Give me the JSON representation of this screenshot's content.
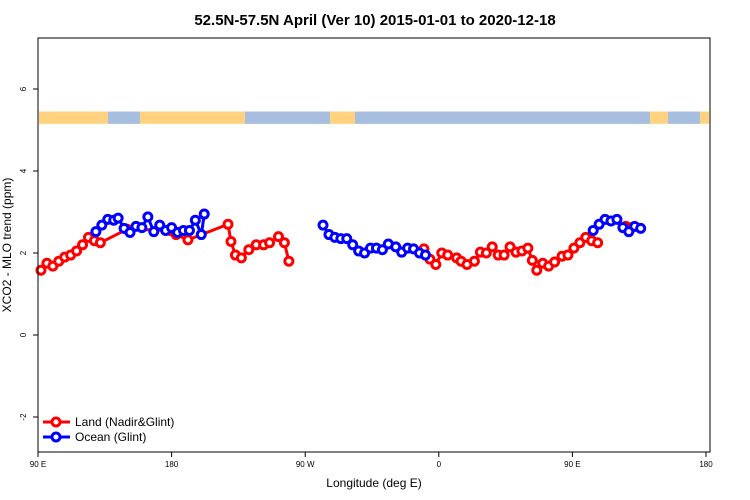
{
  "chart_data": {
    "type": "line",
    "title": "52.5N-57.5N April (Ver 10)   2015-01-01 to 2020-12-18",
    "xlabel": "Longitude (deg E)",
    "ylabel": "XCO2 - MLO trend (ppm)",
    "xlim": [
      90,
      450
    ],
    "ylim": [
      -2.4,
      7.2
    ],
    "x_ticks": [
      {
        "value": 90,
        "label": "90 E"
      },
      {
        "value": 180,
        "label": "180"
      },
      {
        "value": 270,
        "label": "90 W"
      },
      {
        "value": 360,
        "label": "0"
      },
      {
        "value": 450,
        "label": "90 E"
      },
      {
        "value": 540,
        "label": "180"
      }
    ],
    "x_ticks_note": "tick values expressed as continuous degrees east (90E..180 wrapping through 0 to 180)",
    "y_ticks": [
      {
        "value": -2,
        "label": "-2"
      },
      {
        "value": 0,
        "label": "0"
      },
      {
        "value": 2,
        "label": "2"
      },
      {
        "value": 4,
        "label": "4"
      },
      {
        "value": 6,
        "label": "6"
      }
    ],
    "land_ocean_strip": {
      "y_range": [
        5.15,
        5.45
      ],
      "land_color": "#FFD27F",
      "ocean_color": "#A8BEE0"
    },
    "legend": {
      "position": "bottom-left",
      "entries": [
        {
          "label": "Land (Nadir&Glint)",
          "color": "#FF0000"
        },
        {
          "label": "Ocean (Glint)",
          "color": "#0000FF"
        }
      ]
    },
    "series": [
      {
        "name": "Land (Nadir&Glint)",
        "color": "#FF0000",
        "segments": [
          [
            [
              92,
              1.58
            ],
            [
              96,
              1.75
            ],
            [
              100,
              1.68
            ],
            [
              104,
              1.8
            ],
            [
              108,
              1.9
            ],
            [
              112,
              1.95
            ],
            [
              116,
              2.05
            ],
            [
              120,
              2.2
            ],
            [
              124,
              2.38
            ],
            [
              128,
              2.3
            ],
            [
              132,
              2.25
            ],
            [
              150,
              2.58
            ],
            [
              179,
              2.55
            ],
            [
              183,
              2.45
            ],
            [
              191,
              2.32
            ],
            [
              218,
              2.7
            ],
            [
              220,
              2.28
            ],
            [
              223,
              1.95
            ],
            [
              227,
              1.88
            ],
            [
              232,
              2.08
            ],
            [
              237,
              2.2
            ],
            [
              242,
              2.2
            ],
            [
              246,
              2.25
            ],
            [
              252,
              2.4
            ],
            [
              256,
              2.25
            ],
            [
              259,
              1.8
            ]
          ],
          [
            [
              350,
              2.1
            ],
            [
              354,
              1.85
            ],
            [
              358,
              1.72
            ],
            [
              362,
              2.0
            ],
            [
              366,
              1.95
            ],
            [
              372,
              1.88
            ],
            [
              375,
              1.8
            ],
            [
              379,
              1.72
            ],
            [
              384,
              1.8
            ],
            [
              388,
              2.02
            ],
            [
              392,
              2.0
            ],
            [
              396,
              2.15
            ],
            [
              400,
              1.95
            ],
            [
              404,
              1.95
            ],
            [
              408,
              2.15
            ],
            [
              412,
              2.02
            ],
            [
              416,
              2.05
            ],
            [
              420,
              2.12
            ],
            [
              423,
              1.82
            ],
            [
              426,
              1.58
            ],
            [
              430,
              1.75
            ],
            [
              434,
              1.68
            ],
            [
              438,
              1.78
            ],
            [
              443,
              1.92
            ],
            [
              447,
              1.95
            ],
            [
              451,
              2.12
            ],
            [
              455,
              2.25
            ],
            [
              459,
              2.38
            ],
            [
              463,
              2.3
            ],
            [
              467,
              2.25
            ]
          ],
          [
            [
              486,
              2.65
            ],
            [
              490,
              2.62
            ]
          ]
        ]
      },
      {
        "name": "Ocean (Glint)",
        "color": "#0000FF",
        "segments": [
          [
            [
              129,
              2.52
            ],
            [
              133,
              2.68
            ],
            [
              137,
              2.82
            ],
            [
              141,
              2.8
            ],
            [
              144,
              2.85
            ],
            [
              148,
              2.6
            ],
            [
              152,
              2.5
            ],
            [
              156,
              2.65
            ],
            [
              160,
              2.62
            ],
            [
              164,
              2.88
            ],
            [
              168,
              2.52
            ],
            [
              172,
              2.68
            ],
            [
              176,
              2.55
            ],
            [
              180,
              2.62
            ],
            [
              184,
              2.5
            ],
            [
              188,
              2.55
            ],
            [
              192,
              2.55
            ],
            [
              196,
              2.8
            ],
            [
              200,
              2.45
            ],
            [
              202,
              2.95
            ]
          ],
          [
            [
              282,
              2.68
            ],
            [
              286,
              2.45
            ],
            [
              290,
              2.38
            ],
            [
              294,
              2.35
            ],
            [
              298,
              2.35
            ],
            [
              302,
              2.2
            ],
            [
              306,
              2.05
            ],
            [
              310,
              2.0
            ],
            [
              314,
              2.12
            ],
            [
              318,
              2.12
            ],
            [
              322,
              2.08
            ],
            [
              326,
              2.22
            ],
            [
              331,
              2.15
            ],
            [
              335,
              2.02
            ],
            [
              339,
              2.12
            ],
            [
              343,
              2.1
            ],
            [
              347,
              2.0
            ],
            [
              351,
              1.95
            ]
          ],
          [
            [
              464,
              2.55
            ],
            [
              468,
              2.7
            ],
            [
              472,
              2.82
            ],
            [
              476,
              2.78
            ],
            [
              480,
              2.82
            ],
            [
              484,
              2.62
            ],
            [
              488,
              2.52
            ],
            [
              492,
              2.65
            ],
            [
              496,
              2.6
            ]
          ]
        ]
      }
    ]
  }
}
